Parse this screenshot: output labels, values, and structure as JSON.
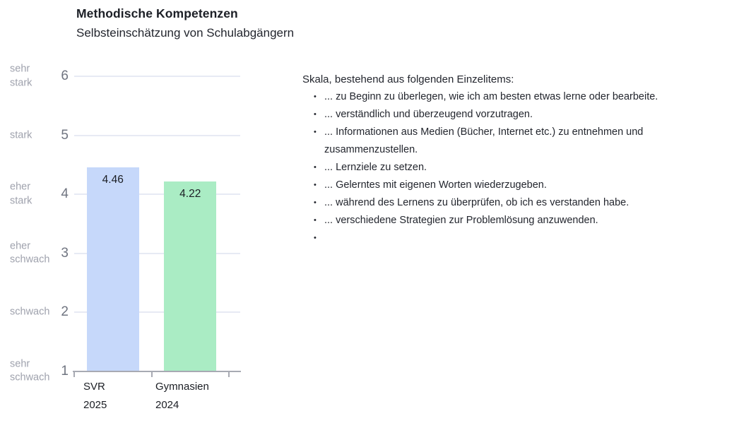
{
  "header": {
    "title": "Methodische Kompetenzen",
    "subtitle": "Selbsteinschätzung von Schulabgängern"
  },
  "chart_data": {
    "type": "bar",
    "title": "Methodische Kompetenzen",
    "subtitle": "Selbsteinschätzung von Schulabgängern",
    "categories": [
      "SVR 2025",
      "Gymnasien 2024"
    ],
    "category_lines": [
      [
        "SVR",
        "2025"
      ],
      [
        "Gymnasien",
        "2024"
      ]
    ],
    "values": [
      4.46,
      4.22
    ],
    "value_labels": [
      "4.46",
      "4.22"
    ],
    "bar_colors": [
      "#c6d8fa",
      "#aaecc4"
    ],
    "ylim": [
      1,
      6
    ],
    "grid": true,
    "legend_position": "none",
    "xlabel": "",
    "ylabel": "",
    "yticks": [
      {
        "value": 6,
        "number": "6",
        "label": "sehr stark",
        "label_lines": [
          "sehr",
          "stark"
        ]
      },
      {
        "value": 5,
        "number": "5",
        "label": "stark",
        "label_lines": [
          "stark"
        ]
      },
      {
        "value": 4,
        "number": "4",
        "label": "eher stark",
        "label_lines": [
          "eher",
          "stark"
        ]
      },
      {
        "value": 3,
        "number": "3",
        "label": "eher schwach",
        "label_lines": [
          "eher",
          "schwach"
        ]
      },
      {
        "value": 2,
        "number": "2",
        "label": "schwach",
        "label_lines": [
          "schwach"
        ]
      },
      {
        "value": 1,
        "number": "1",
        "label": "sehr schwach",
        "label_lines": [
          "sehr",
          "schwach"
        ]
      }
    ]
  },
  "scale_panel": {
    "heading": "Skala, bestehend aus folgenden Einzelitems:",
    "items": [
      "... zu Beginn zu überlegen, wie ich am besten etwas lerne oder bearbeite.",
      "... verständlich und überzeugend vorzutragen.",
      "... Informationen aus Medien (Bücher, Internet etc.) zu entnehmen und zusammenzustellen.",
      "... Lernziele zu setzen.",
      "... Gelerntes mit eigenen Worten wiederzugeben.",
      "... während des Lernens zu überprüfen, ob ich es verstanden habe.",
      "... verschiedene Strategien zur Problemlösung anzuwenden.",
      ""
    ]
  },
  "colors": {
    "bar_svr_2025": "#c6d8fa",
    "bar_gymnasien_2024": "#aaecc4",
    "gridline": "#e7eaf4",
    "axis_line": "#a8aab3",
    "axis_number_text": "#6f7480",
    "axis_word_text": "#9fa2ad",
    "text_dark": "#1b1e24"
  }
}
